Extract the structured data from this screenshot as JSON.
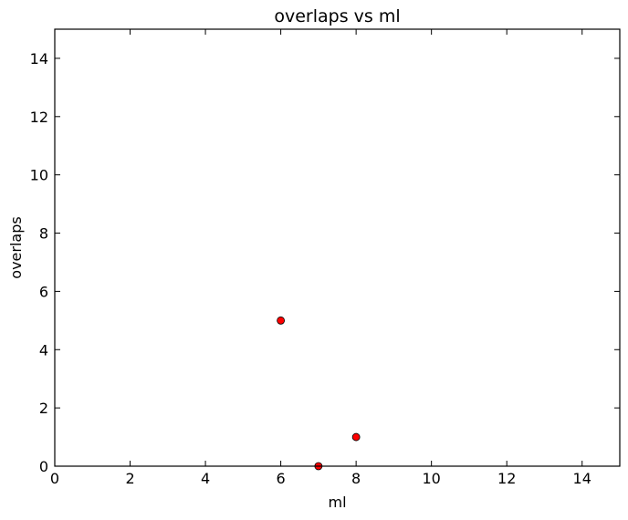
{
  "chart_data": {
    "type": "scatter",
    "title": "overlaps vs ml",
    "xlabel": "ml",
    "ylabel": "overlaps",
    "xlim": [
      0,
      15
    ],
    "ylim": [
      0,
      15
    ],
    "xticks": [
      "0",
      "2",
      "4",
      "6",
      "8",
      "10",
      "12",
      "14"
    ],
    "yticks": [
      "0",
      "2",
      "4",
      "6",
      "8",
      "10",
      "12",
      "14"
    ],
    "grid": false,
    "series": [
      {
        "marker_color": "#ff0000",
        "points": [
          {
            "x": 6,
            "y": 5
          },
          {
            "x": 7,
            "y": 0
          },
          {
            "x": 8,
            "y": 1
          }
        ]
      }
    ]
  }
}
